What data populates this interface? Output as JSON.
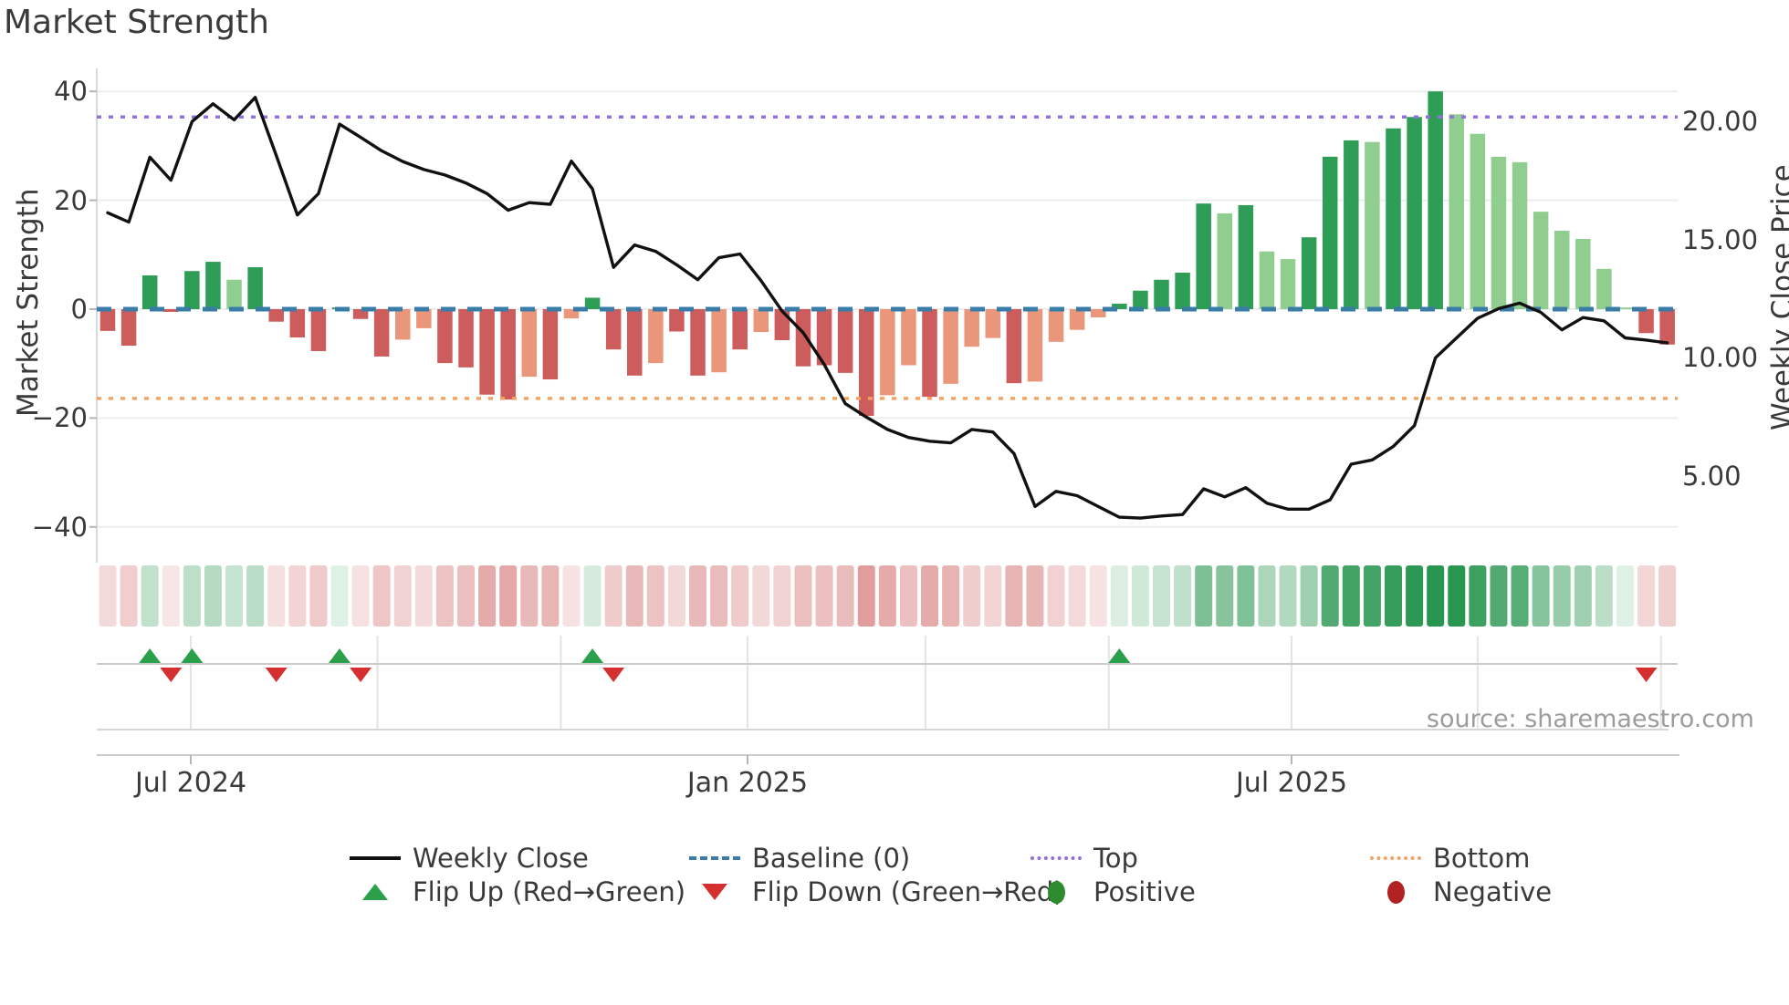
{
  "title": "Market Strength",
  "source": "source: sharemaestro.com",
  "left_axis": {
    "title": "Market Strength",
    "ticks": [
      {
        "label": "40",
        "value": 40
      },
      {
        "label": "20",
        "value": 20
      },
      {
        "label": "0",
        "value": 0
      },
      {
        "label": "−20",
        "value": -20
      },
      {
        "label": "−40",
        "value": -40
      }
    ]
  },
  "right_axis": {
    "title": "Weekly Close Price",
    "ticks": [
      {
        "label": "20.00",
        "value": 20
      },
      {
        "label": "15.00",
        "value": 15
      },
      {
        "label": "10.00",
        "value": 10
      },
      {
        "label": "5.00",
        "value": 5
      }
    ]
  },
  "x_axis": {
    "ticks": [
      {
        "label": "Jul 2024",
        "week": 3.94
      },
      {
        "label": "Jan 2025",
        "week": 30.36
      },
      {
        "label": "Jul 2025",
        "week": 56.17
      }
    ],
    "minor_tick_weeks": [
      12.8,
      21.5,
      38.8,
      47.5,
      65.0,
      73.7
    ]
  },
  "legend": {
    "rows": [
      [
        {
          "swatch": "line",
          "label": "Weekly Close"
        },
        {
          "swatch": "dash",
          "label": "Baseline (0)"
        },
        {
          "swatch": "dot-purple",
          "label": "Top"
        },
        {
          "swatch": "dot-orange",
          "label": "Bottom"
        }
      ],
      [
        {
          "swatch": "tri-up",
          "label": "Flip Up (Red→Green)"
        },
        {
          "swatch": "tri-down",
          "label": "Flip Down (Green→Red)"
        },
        {
          "swatch": "circ-green",
          "label": "Positive"
        },
        {
          "swatch": "circ-red",
          "label": "Negative"
        }
      ]
    ]
  },
  "colors": {
    "bar_red": "#cd5c5c",
    "bar_salmon": "#e9967a",
    "bar_green": "#2e9e57",
    "bar_light_green": "#8fce8f",
    "price_line": "#111111",
    "baseline": "#3a7ca8",
    "top_line": "#9370db",
    "bottom_line": "#f4a460",
    "flip_up": "#2aa04a",
    "flip_down": "#d62f2f",
    "positive_dot": "#2e8b2e",
    "negative_dot": "#b22222",
    "grid": "#ecedf1",
    "spine": "#d6d9de",
    "band_line": "#cccccc",
    "tick_mark": "#b5b5b5"
  },
  "chart_data": {
    "type": "bar+line",
    "title": "Market Strength",
    "n_weeks": 75,
    "left_ylim": [
      -46,
      44
    ],
    "right_ylim": [
      2.9,
      21.5
    ],
    "baseline_value": 0,
    "top_value": 35.3,
    "bottom_value": -16.4,
    "series": [
      {
        "name": "Market Strength (weekly bars, left axis)",
        "type": "bar",
        "axis": "left",
        "values": [
          -4.0,
          -6.7,
          6.2,
          -0.5,
          7.0,
          8.7,
          5.4,
          7.7,
          -2.3,
          -5.2,
          -7.7,
          0.3,
          -1.8,
          -8.7,
          -5.6,
          -3.5,
          -9.9,
          -10.7,
          -15.7,
          -16.6,
          -12.4,
          -12.9,
          -1.7,
          2.1,
          -7.4,
          -12.2,
          -9.9,
          -4.1,
          -12.2,
          -11.6,
          -7.4,
          -4.2,
          -5.7,
          -10.5,
          -10.3,
          -11.7,
          -19.6,
          -15.8,
          -10.3,
          -16.1,
          -13.7,
          -6.9,
          -5.3,
          -13.6,
          -13.3,
          -6.0,
          -3.8,
          -1.5,
          1.0,
          3.4,
          5.4,
          6.7,
          19.4,
          17.6,
          19.1,
          10.6,
          9.2,
          13.2,
          28.0,
          31.0,
          30.7,
          33.2,
          35.3,
          40.0,
          35.8,
          32.2,
          28.0,
          27.0,
          17.9,
          14.4,
          12.9,
          7.4,
          0.3,
          -4.4,
          -6.5
        ],
        "shades": [
          "r",
          "r",
          "g",
          "r",
          "g",
          "g",
          "l",
          "g",
          "r",
          "r",
          "r",
          "g",
          "r",
          "r",
          "s",
          "s",
          "r",
          "r",
          "r",
          "r",
          "s",
          "r",
          "s",
          "g",
          "r",
          "r",
          "s",
          "r",
          "r",
          "s",
          "r",
          "s",
          "r",
          "r",
          "r",
          "r",
          "r",
          "s",
          "s",
          "r",
          "s",
          "s",
          "s",
          "r",
          "s",
          "s",
          "s",
          "s",
          "g",
          "g",
          "g",
          "g",
          "g",
          "l",
          "g",
          "l",
          "l",
          "g",
          "g",
          "g",
          "l",
          "g",
          "g",
          "g",
          "l",
          "l",
          "l",
          "l",
          "l",
          "l",
          "l",
          "l",
          "l",
          "r",
          "r"
        ]
      },
      {
        "name": "Weekly Close",
        "type": "line",
        "axis": "right",
        "values": [
          16.13,
          15.74,
          18.48,
          17.51,
          19.99,
          20.74,
          20.06,
          21.01,
          18.55,
          16.04,
          16.94,
          19.88,
          19.32,
          18.75,
          18.3,
          17.96,
          17.73,
          17.39,
          16.94,
          16.24,
          16.56,
          16.49,
          18.32,
          17.14,
          13.82,
          14.77,
          14.5,
          13.93,
          13.3,
          14.23,
          14.39,
          13.26,
          11.97,
          11.06,
          9.71,
          8.06,
          7.49,
          6.97,
          6.63,
          6.47,
          6.4,
          6.97,
          6.86,
          5.95,
          3.71,
          4.35,
          4.17,
          3.71,
          3.26,
          3.22,
          3.31,
          3.37,
          4.46,
          4.12,
          4.51,
          3.85,
          3.6,
          3.6,
          3.99,
          5.5,
          5.68,
          6.25,
          7.13,
          10.0,
          10.84,
          11.67,
          12.08,
          12.31,
          11.92,
          11.18,
          11.7,
          11.56,
          10.84,
          10.75,
          10.63
        ]
      }
    ],
    "heatmap_strip": "same values as bar series, rendered as color intensity cells",
    "flip_up_weeks": [
      2,
      4,
      11,
      23,
      48
    ],
    "flip_down_weeks": [
      3,
      8,
      12,
      24,
      73
    ],
    "legend_position": "bottom"
  }
}
